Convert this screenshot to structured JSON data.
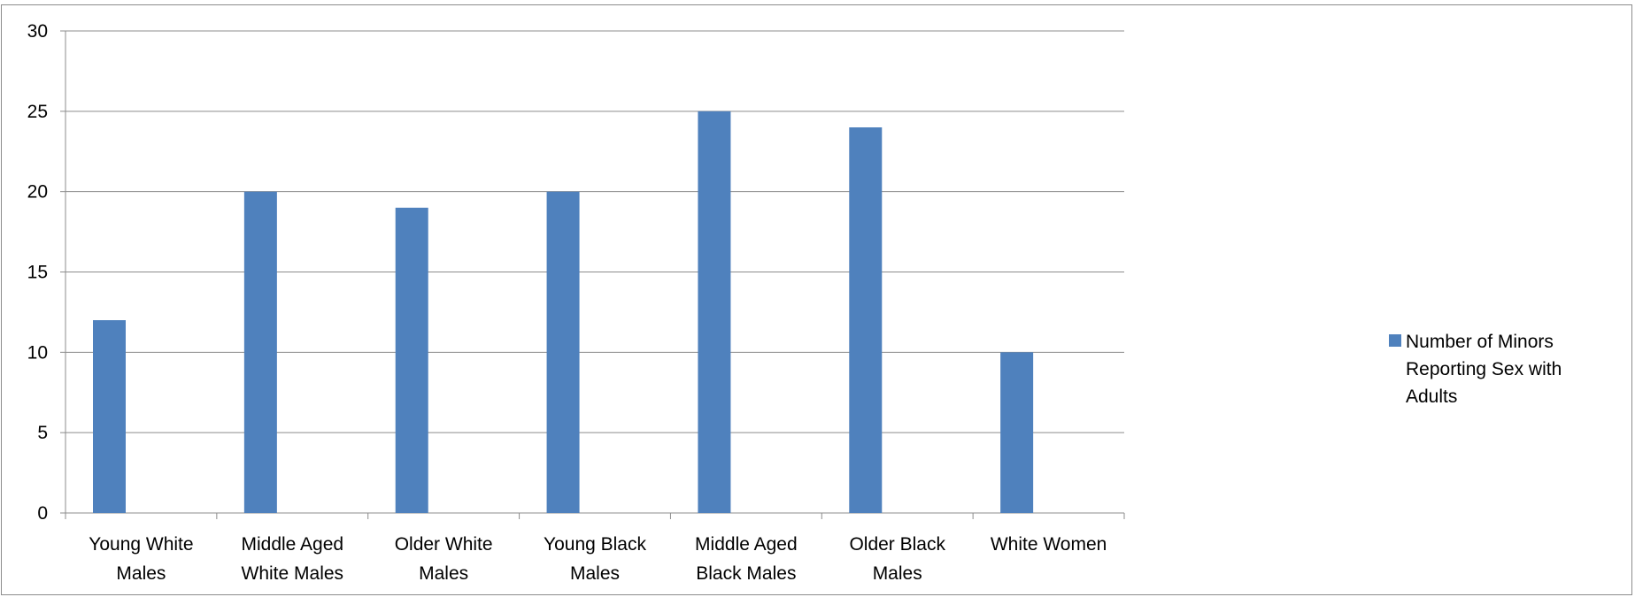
{
  "chart_data": {
    "type": "bar",
    "categories": [
      [
        "Young White",
        "Males"
      ],
      [
        "Middle Aged",
        "White Males"
      ],
      [
        "Older White",
        "Males"
      ],
      [
        "Young Black",
        "Males"
      ],
      [
        "Middle Aged",
        "Black Males"
      ],
      [
        "Older Black",
        "Males"
      ],
      [
        "White Women"
      ]
    ],
    "series": [
      {
        "name": "Number of Minors Reporting Sex with Adults",
        "values": [
          12,
          20,
          19,
          20,
          25,
          24,
          10
        ],
        "color": "#4f81bd"
      }
    ],
    "y_ticks": [
      "0",
      "5",
      "10",
      "15",
      "20",
      "25",
      "30"
    ],
    "ylim": [
      0,
      30
    ],
    "grid": true,
    "legend_position": "right"
  }
}
